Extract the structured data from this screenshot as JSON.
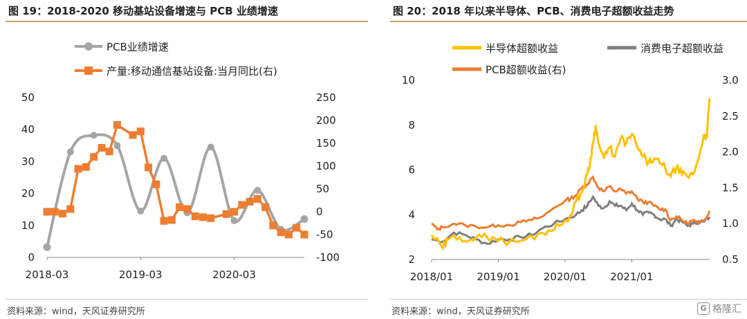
{
  "left": {
    "title": "图 19：2018-2020 移动基站设备增速与 PCB 业绩增速",
    "source": "资料来源：wind，天风证券研究所"
  },
  "right": {
    "title": "图 20：2018 年以来半导体、PCB、消费电子超额收益走势",
    "source": "资料来源：wind，天风证券研究所"
  },
  "watermark": {
    "box": "G",
    "text": "格隆汇"
  },
  "colors": {
    "orange": "#ED7D31",
    "gray": "#A5A5A5",
    "gold": "#FFC000",
    "darkgray": "#7F7F7F",
    "rule": "#C8A46C"
  },
  "chart_data": [
    {
      "type": "line",
      "title": "图 19：2018-2020 移动基站设备增速与 PCB 业绩增速",
      "xlabel": "",
      "ylabel": "",
      "x_ticks": [
        "2018-03",
        "2019-03",
        "2020-03"
      ],
      "y_left_ticks": [
        0,
        10,
        20,
        30,
        40,
        50
      ],
      "y_left_lim": [
        0,
        50
      ],
      "y_right_ticks": [
        -100,
        -50,
        0,
        50,
        100,
        150,
        200,
        250
      ],
      "y_right_lim": [
        -100,
        250
      ],
      "legend_position": "top",
      "grid": false,
      "series": [
        {
          "name": "PCB业绩增速",
          "axis": "left",
          "smooth": true,
          "color": "#A5A5A5",
          "points": [
            [
              0,
              3.2
            ],
            [
              3,
              33
            ],
            [
              6,
              38.2
            ],
            [
              9,
              35
            ],
            [
              12,
              14.5
            ],
            [
              15,
              31
            ],
            [
              18,
              14
            ],
            [
              21,
              34.5
            ],
            [
              24,
              11.5
            ],
            [
              27,
              21
            ],
            [
              30,
              8.8
            ],
            [
              33,
              12
            ]
          ]
        },
        {
          "name": "产量:移动通信基站设备:当月同比(右)",
          "axis": "right",
          "smooth": false,
          "color": "#ED7D31",
          "points": [
            [
              0,
              0
            ],
            [
              1,
              0
            ],
            [
              2,
              -4
            ],
            [
              3,
              6
            ],
            [
              4,
              94
            ],
            [
              5,
              98
            ],
            [
              6,
              120
            ],
            [
              7,
              140
            ],
            [
              8,
              132
            ],
            [
              9,
              190
            ],
            [
              11,
              168
            ],
            [
              12,
              176
            ],
            [
              13,
              97
            ],
            [
              14,
              60
            ],
            [
              15,
              -20
            ],
            [
              16,
              -18
            ],
            [
              17,
              10
            ],
            [
              18,
              6
            ],
            [
              19,
              -10
            ],
            [
              20,
              -12
            ],
            [
              21,
              -14
            ],
            [
              23,
              -5
            ],
            [
              24,
              0
            ],
            [
              25,
              15
            ],
            [
              26,
              22
            ],
            [
              27,
              28
            ],
            [
              28,
              10
            ],
            [
              29,
              -30
            ],
            [
              30,
              -45
            ],
            [
              31,
              -50
            ],
            [
              32,
              -35
            ],
            [
              33,
              -50
            ]
          ]
        }
      ]
    },
    {
      "type": "line",
      "title": "图 20：2018 年以来半导体、PCB、消费电子超额收益走势",
      "xlabel": "",
      "ylabel": "",
      "x_ticks": [
        "2018/01",
        "2019/01",
        "2020/01",
        "2021/01"
      ],
      "y_left_ticks": [
        2,
        4,
        6,
        8,
        10
      ],
      "y_left_lim": [
        2,
        10
      ],
      "y_right_ticks": [
        0.5,
        1.0,
        1.5,
        2.0,
        2.5,
        3.0
      ],
      "y_right_lim": [
        0.5,
        3.0
      ],
      "legend_position": "top",
      "grid": false,
      "series": [
        {
          "name": "半导体超额收益",
          "axis": "left",
          "color": "#FFC000",
          "points": [
            [
              0,
              3.1
            ],
            [
              2,
              2.5
            ],
            [
              3,
              2.9
            ],
            [
              5,
              3.0
            ],
            [
              7,
              2.9
            ],
            [
              9,
              3.0
            ],
            [
              11,
              3.0
            ],
            [
              13,
              2.8
            ],
            [
              15,
              2.8
            ],
            [
              17,
              2.9
            ],
            [
              19,
              3.1
            ],
            [
              21,
              3.3
            ],
            [
              23,
              3.5
            ],
            [
              25,
              4.0
            ],
            [
              26,
              4.6
            ],
            [
              27,
              5.0
            ],
            [
              28,
              5.8
            ],
            [
              28.5,
              6.3
            ],
            [
              29,
              7.2
            ],
            [
              29.5,
              8.0
            ],
            [
              30,
              7.2
            ],
            [
              31,
              6.5
            ],
            [
              32,
              7.0
            ],
            [
              33,
              6.6
            ],
            [
              34,
              7.4
            ],
            [
              35,
              7.2
            ],
            [
              36,
              7.6
            ],
            [
              37,
              7.0
            ],
            [
              38,
              6.6
            ],
            [
              39,
              6.3
            ],
            [
              40,
              6.5
            ],
            [
              41,
              6.3
            ],
            [
              42,
              6.1
            ],
            [
              43,
              5.7
            ],
            [
              44,
              6.1
            ],
            [
              45,
              5.8
            ],
            [
              46,
              5.7
            ],
            [
              47,
              5.8
            ],
            [
              48,
              6.5
            ],
            [
              49,
              7.6
            ],
            [
              49.5,
              7.5
            ],
            [
              50,
              9.2
            ]
          ]
        },
        {
          "name": "消费电子超额收益",
          "axis": "left",
          "color": "#7F7F7F",
          "points": [
            [
              0,
              2.9
            ],
            [
              2,
              2.8
            ],
            [
              4,
              3.2
            ],
            [
              6,
              3.1
            ],
            [
              8,
              2.9
            ],
            [
              10,
              2.7
            ],
            [
              12,
              2.9
            ],
            [
              14,
              2.9
            ],
            [
              16,
              3.0
            ],
            [
              18,
              3.1
            ],
            [
              20,
              3.4
            ],
            [
              22,
              3.6
            ],
            [
              24,
              3.8
            ],
            [
              26,
              4.0
            ],
            [
              27,
              4.2
            ],
            [
              28,
              4.4
            ],
            [
              29,
              4.8
            ],
            [
              30,
              4.4
            ],
            [
              31,
              4.3
            ],
            [
              32,
              4.6
            ],
            [
              33,
              4.4
            ],
            [
              34,
              4.4
            ],
            [
              35,
              4.2
            ],
            [
              36,
              4.5
            ],
            [
              37,
              4.2
            ],
            [
              38,
              4.0
            ],
            [
              39,
              4.1
            ],
            [
              40,
              4.0
            ],
            [
              41,
              3.8
            ],
            [
              42,
              3.8
            ],
            [
              43,
              3.5
            ],
            [
              44,
              3.8
            ],
            [
              45,
              3.7
            ],
            [
              46,
              3.5
            ],
            [
              47,
              3.6
            ],
            [
              48,
              3.7
            ],
            [
              49,
              3.7
            ],
            [
              50,
              3.9
            ]
          ]
        },
        {
          "name": "PCB超额收益(右)",
          "axis": "right",
          "color": "#ED7D31",
          "points": [
            [
              0,
              1.0
            ],
            [
              1,
              0.92
            ],
            [
              2,
              0.95
            ],
            [
              4,
              1.0
            ],
            [
              6,
              0.98
            ],
            [
              8,
              0.96
            ],
            [
              10,
              0.95
            ],
            [
              12,
              0.98
            ],
            [
              14,
              0.98
            ],
            [
              16,
              1.02
            ],
            [
              18,
              1.05
            ],
            [
              20,
              1.1
            ],
            [
              22,
              1.22
            ],
            [
              24,
              1.32
            ],
            [
              25,
              1.35
            ],
            [
              26,
              1.4
            ],
            [
              27,
              1.5
            ],
            [
              28,
              1.55
            ],
            [
              29,
              1.65
            ],
            [
              30,
              1.5
            ],
            [
              31,
              1.45
            ],
            [
              32,
              1.52
            ],
            [
              33,
              1.45
            ],
            [
              34,
              1.48
            ],
            [
              35,
              1.42
            ],
            [
              36,
              1.45
            ],
            [
              37,
              1.35
            ],
            [
              38,
              1.3
            ],
            [
              39,
              1.3
            ],
            [
              40,
              1.25
            ],
            [
              41,
              1.2
            ],
            [
              42,
              1.2
            ],
            [
              43,
              1.05
            ],
            [
              44,
              1.1
            ],
            [
              45,
              1.05
            ],
            [
              46,
              1.0
            ],
            [
              47,
              1.05
            ],
            [
              48,
              1.0
            ],
            [
              49,
              1.05
            ],
            [
              50,
              1.18
            ]
          ]
        }
      ]
    }
  ]
}
